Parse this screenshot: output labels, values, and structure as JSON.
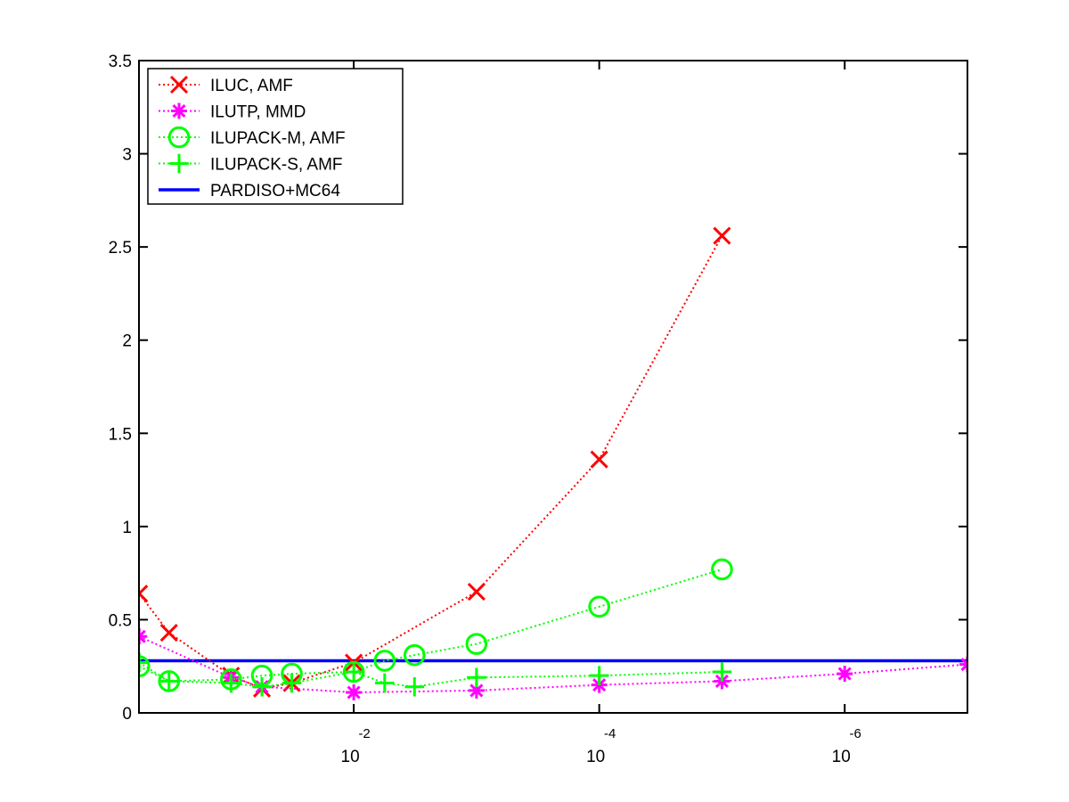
{
  "chart_data": {
    "type": "line",
    "title": "",
    "xlabel": "",
    "ylabel": "",
    "x_scale": "log",
    "x_direction": "decreasing",
    "x_domain_exponent": [
      -0.25,
      -7
    ],
    "x_ticks": [
      {
        "base": "10",
        "exp": "-2",
        "value": 0.01
      },
      {
        "base": "10",
        "exp": "-4",
        "value": 0.0001
      },
      {
        "base": "10",
        "exp": "-6",
        "value": 1e-06
      }
    ],
    "ylim": [
      0,
      3.5
    ],
    "y_ticks": [
      "0",
      "0.5",
      "1",
      "1.5",
      "2",
      "2.5",
      "3",
      "3.5"
    ],
    "y_tick_values": [
      0,
      0.5,
      1,
      1.5,
      2,
      2.5,
      3,
      3.5
    ],
    "legend_position": "top-left",
    "grid": false,
    "series": [
      {
        "name": "ILUC, AMF",
        "color": "#ff0000",
        "marker": "x",
        "line": "dotted",
        "x": [
          0.56,
          0.32,
          0.1,
          0.056,
          0.032,
          0.01,
          0.001,
          0.0001,
          1e-05
        ],
        "y": [
          0.64,
          0.43,
          0.2,
          0.13,
          0.16,
          0.27,
          0.65,
          1.36,
          2.56
        ]
      },
      {
        "name": "ILUTP, MMD",
        "color": "#ff00ff",
        "marker": "asterisk",
        "line": "dotted",
        "x": [
          0.56,
          0.1,
          0.056,
          0.01,
          0.001,
          0.0001,
          1e-05,
          1e-06,
          1e-07
        ],
        "y": [
          0.41,
          0.19,
          0.14,
          0.11,
          0.12,
          0.15,
          0.17,
          0.21,
          0.26
        ]
      },
      {
        "name": "ILUPACK-M, AMF",
        "color": "#00ff00",
        "marker": "circle",
        "line": "dotted",
        "x": [
          0.56,
          0.32,
          0.1,
          0.056,
          0.032,
          0.01,
          0.0056,
          0.0032,
          0.001,
          0.0001,
          1e-05
        ],
        "y": [
          0.25,
          0.17,
          0.18,
          0.2,
          0.21,
          0.22,
          0.28,
          0.31,
          0.37,
          0.57,
          0.77
        ]
      },
      {
        "name": "ILUPACK-S, AMF",
        "color": "#00ff00",
        "marker": "plus",
        "line": "dotted",
        "x": [
          0.56,
          0.32,
          0.1,
          0.056,
          0.032,
          0.01,
          0.0056,
          0.0032,
          0.001,
          0.0001,
          1e-05
        ],
        "y": [
          0.27,
          0.17,
          0.16,
          0.14,
          0.16,
          0.22,
          0.16,
          0.14,
          0.19,
          0.2,
          0.22
        ]
      },
      {
        "name": "PARDISO+MC64",
        "color": "#0000ff",
        "marker": "none",
        "line": "solid",
        "constant_y": 0.28
      }
    ]
  }
}
